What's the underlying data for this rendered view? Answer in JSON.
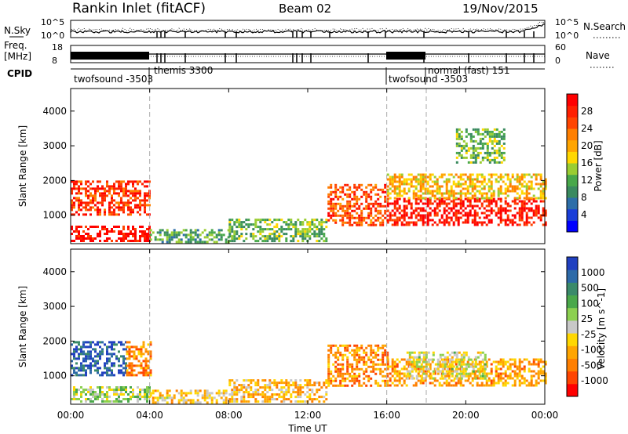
{
  "header": {
    "title": "Rankin Inlet (fitACF)",
    "beam": "Beam 02",
    "date": "19/Nov/2015"
  },
  "top_panels": {
    "nsky_label": "N.Sky",
    "nsearch_label": "N.Search",
    "freq_label_line1": "Freq.",
    "freq_label_line2": "[MHz]",
    "nave_label": "Nave",
    "cpid_label": "CPID",
    "nsky_ticks": [
      "10^5",
      "10^0"
    ],
    "nsearch_ticks": [
      "10^5",
      "10^0"
    ],
    "freq_ticks": [
      "18",
      "8"
    ],
    "nave_ticks": [
      "60",
      "0"
    ]
  },
  "cpid_segments": [
    {
      "label": "twofsound -3503"
    },
    {
      "label": "themis 3300"
    },
    {
      "label": "twofsound -3503"
    },
    {
      "label": "normal (fast) 151"
    }
  ],
  "colorbars": {
    "power": {
      "label": "Power [dB]",
      "ticks": [
        "28",
        "24",
        "20",
        "16",
        "12",
        "8",
        "4"
      ],
      "colors": [
        "#0000ff",
        "#1a3ed8",
        "#2d6ea8",
        "#3a8a5f",
        "#48a84a",
        "#9acd32",
        "#ffd700",
        "#ffa500",
        "#ff7f00",
        "#ff4500",
        "#ff2000",
        "#ff0000"
      ]
    },
    "velocity": {
      "label": "Velocity [m s^-1]",
      "ticks": [
        "1000",
        "500",
        "100",
        "25",
        "-25",
        "-100",
        "-500",
        "-1000"
      ],
      "colors": [
        "#2040c0",
        "#2d6aa8",
        "#3a8a6a",
        "#4aa84a",
        "#8cd050",
        "#c8c8c8",
        "#ffd700",
        "#ffa500",
        "#ff7f00",
        "#ff4500",
        "#ff0000"
      ]
    }
  },
  "chart_data": [
    {
      "type": "heatmap",
      "name": "power",
      "ylabel": "Slant Range [km]",
      "yticks": [
        "4000",
        "3000",
        "2000",
        "1000"
      ],
      "xlim": [
        0,
        24
      ],
      "ylim": [
        180,
        4650
      ],
      "regions": [
        {
          "x": [
            0.0,
            4.0
          ],
          "y": [
            1000,
            2000
          ],
          "level": 0.85
        },
        {
          "x": [
            0.0,
            4.0
          ],
          "y": [
            250,
            700
          ],
          "level": 0.95
        },
        {
          "x": [
            4.0,
            8.0
          ],
          "y": [
            250,
            600
          ],
          "level": 0.35
        },
        {
          "x": [
            8.0,
            13.0
          ],
          "y": [
            250,
            900
          ],
          "level": 0.4
        },
        {
          "x": [
            13.0,
            16.0
          ],
          "y": [
            700,
            1900
          ],
          "level": 0.8
        },
        {
          "x": [
            16.0,
            24.0
          ],
          "y": [
            700,
            1500
          ],
          "level": 0.92
        },
        {
          "x": [
            16.0,
            24.0
          ],
          "y": [
            1500,
            2200
          ],
          "level": 0.6
        },
        {
          "x": [
            19.5,
            22.0
          ],
          "y": [
            2500,
            3500
          ],
          "level": 0.4
        }
      ]
    },
    {
      "type": "heatmap",
      "name": "velocity",
      "xlabel": "Time UT",
      "ylabel": "Slant Range [km]",
      "yticks": [
        "4000",
        "3000",
        "2000",
        "1000"
      ],
      "xticks": [
        "00:00",
        "04:00",
        "08:00",
        "12:00",
        "16:00",
        "20:00",
        "00:00"
      ],
      "xlim": [
        0,
        24
      ],
      "ylim": [
        180,
        4650
      ],
      "regions": [
        {
          "x": [
            0.0,
            2.8
          ],
          "y": [
            1000,
            2000
          ],
          "level": 0.1
        },
        {
          "x": [
            2.8,
            4.0
          ],
          "y": [
            1000,
            2000
          ],
          "level": 0.75
        },
        {
          "x": [
            0.0,
            4.0
          ],
          "y": [
            250,
            700
          ],
          "level": 0.45
        },
        {
          "x": [
            4.0,
            8.0
          ],
          "y": [
            250,
            600
          ],
          "level": 0.6
        },
        {
          "x": [
            8.0,
            13.0
          ],
          "y": [
            250,
            900
          ],
          "level": 0.65
        },
        {
          "x": [
            13.0,
            16.0
          ],
          "y": [
            700,
            1900
          ],
          "level": 0.75
        },
        {
          "x": [
            16.0,
            24.0
          ],
          "y": [
            700,
            1500
          ],
          "level": 0.7
        },
        {
          "x": [
            17.0,
            21.0
          ],
          "y": [
            900,
            1700
          ],
          "level": 0.5
        }
      ]
    }
  ]
}
